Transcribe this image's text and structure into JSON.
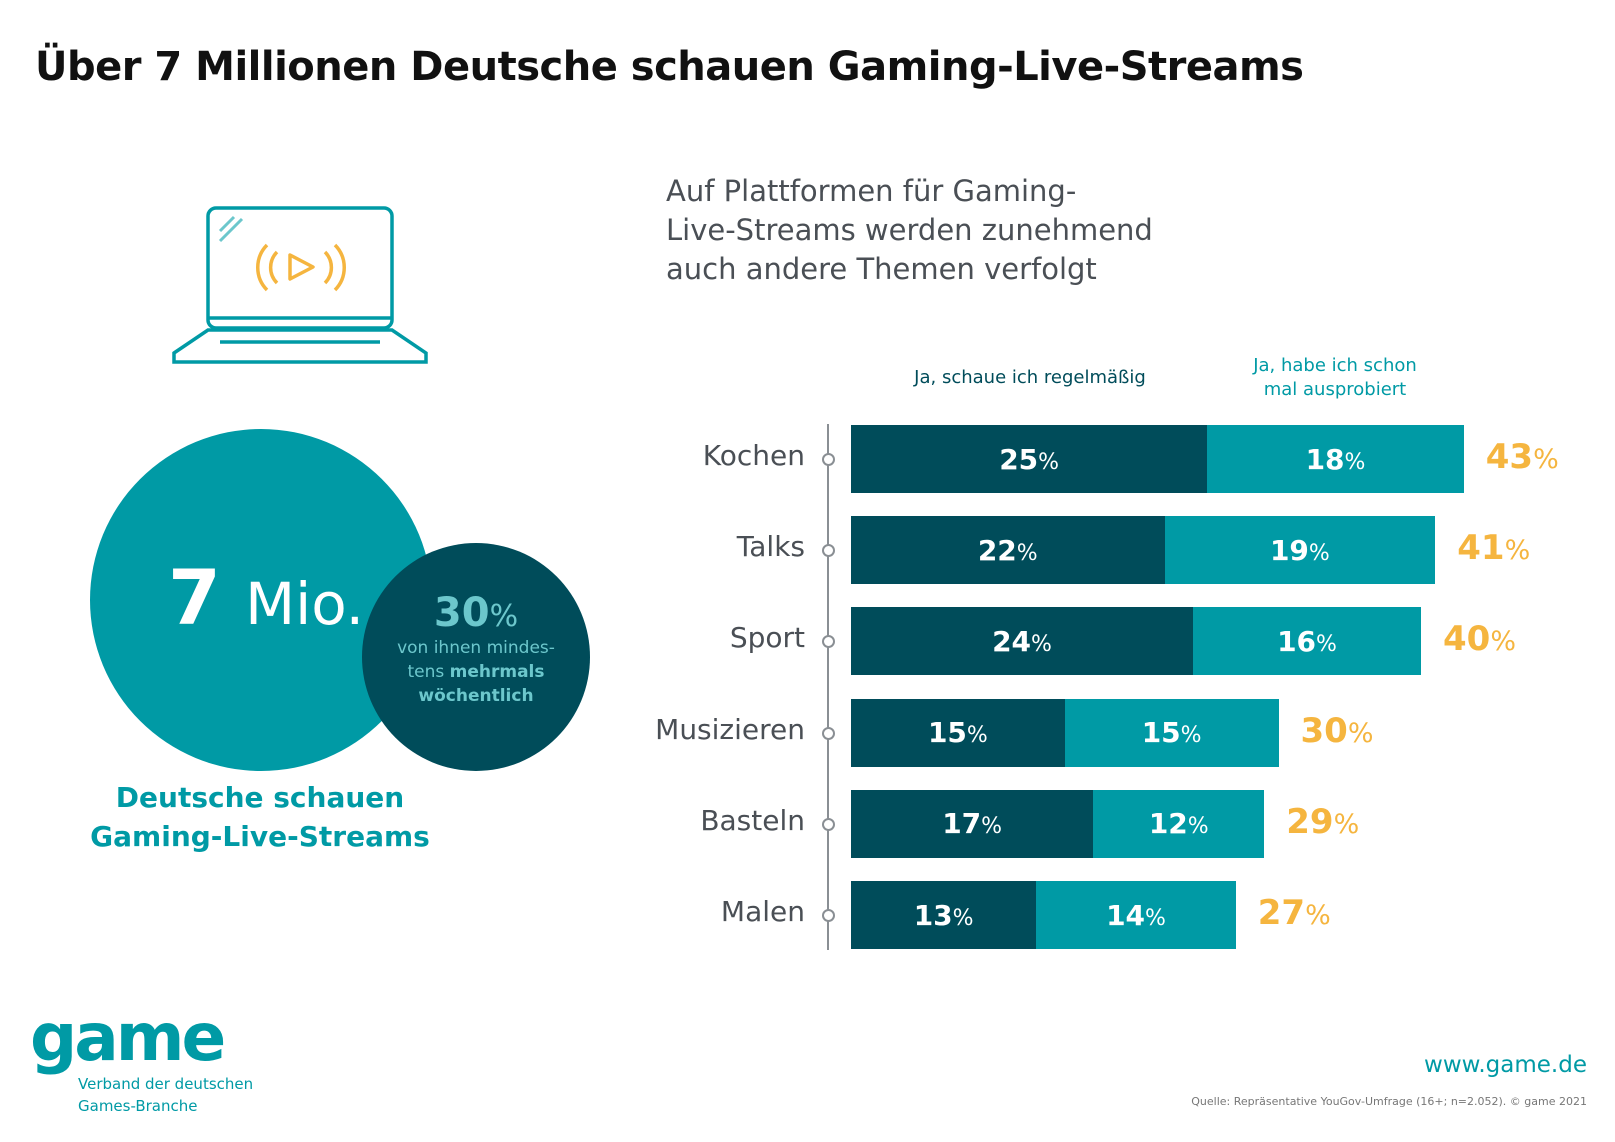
{
  "title": "Über 7 Millionen Deutsche schauen Gaming-Live-Streams",
  "left": {
    "icon": "laptop-live-stream-icon",
    "big_value": "7",
    "big_unit": "Mio.",
    "small_value": "30",
    "small_unit": "%",
    "small_text_1": "von ihnen mindes-",
    "small_text_2": "tens ",
    "small_text_bold_1": "mehrmals",
    "small_text_bold_2": "wöchentlich",
    "caption_1": "Deutsche schauen",
    "caption_2": "Gaming-Live-Streams"
  },
  "colors": {
    "regular": "#004c5a",
    "tried": "#009aa5",
    "total": "#f5b53f"
  },
  "chart_data": {
    "type": "bar",
    "orientation": "horizontal",
    "stacked": true,
    "title": "Auf Plattformen für Gaming-Live-Streams werden zunehmend auch andere Themen verfolgt",
    "title_lines": [
      "Auf Plattformen für Gaming-",
      "Live-Streams werden zunehmend",
      "auch andere Themen verfolgt"
    ],
    "categories": [
      "Kochen",
      "Talks",
      "Sport",
      "Musizieren",
      "Basteln",
      "Malen"
    ],
    "series": [
      {
        "name": "Ja, schaue ich regelmäßig",
        "values": [
          25,
          22,
          24,
          15,
          17,
          13
        ]
      },
      {
        "name": "Ja, habe ich schon mal ausprobiert",
        "values": [
          18,
          19,
          16,
          15,
          12,
          14
        ]
      }
    ],
    "legend_lines": [
      [
        "Ja, schaue ich regelmäßig"
      ],
      [
        "Ja, habe ich schon",
        "mal ausprobiert"
      ]
    ],
    "totals": [
      43,
      41,
      40,
      30,
      29,
      27
    ],
    "unit": "%",
    "legend_placement": "top",
    "grid": false
  },
  "footer": {
    "logo": "game",
    "logo_line1": "Verband der deutschen",
    "logo_line2": "Games-Branche",
    "url": "www.game.de",
    "source": "Quelle: Repräsentative YouGov-Umfrage (16+; n=2.052). © game 2021"
  }
}
